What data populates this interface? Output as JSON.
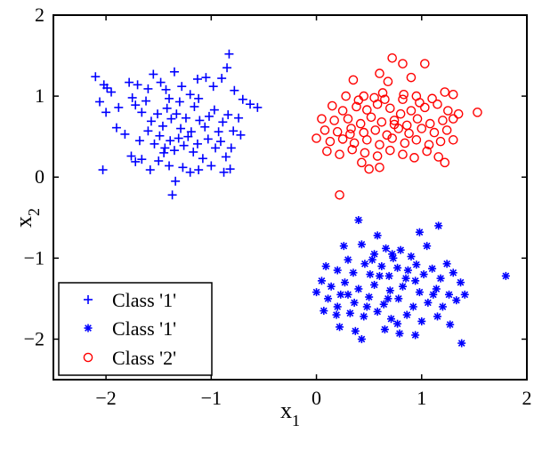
{
  "chart_data": {
    "type": "scatter",
    "xlabel": "x",
    "xlabel_sub": "1",
    "ylabel": "x",
    "ylabel_sub": "2",
    "xlim": [
      -2.5,
      2
    ],
    "ylim": [
      -2.5,
      2
    ],
    "xticks": [
      -2,
      -1,
      0,
      1,
      2
    ],
    "yticks": [
      -2,
      -1,
      0,
      1,
      2
    ],
    "xtick_labels": [
      "−2",
      "−1",
      "0",
      "1",
      "2"
    ],
    "ytick_labels": [
      "−2",
      "−1",
      "0",
      "1",
      "2"
    ],
    "grid": false,
    "legend_position": "bottom-left",
    "series": [
      {
        "name": "Class '1'",
        "marker": "plus",
        "color": "#0000ff",
        "points": [
          [
            -2.1,
            1.24
          ],
          [
            -2.02,
            1.14
          ],
          [
            -1.95,
            1.05
          ],
          [
            -2.06,
            0.93
          ],
          [
            -2.0,
            0.8
          ],
          [
            -1.78,
            1.17
          ],
          [
            -1.75,
            0.98
          ],
          [
            -1.6,
            1.09
          ],
          [
            -1.55,
            1.27
          ],
          [
            -1.48,
            1.17
          ],
          [
            -1.43,
            1.08
          ],
          [
            -1.4,
            0.97
          ],
          [
            -1.35,
            1.3
          ],
          [
            -1.28,
            1.12
          ],
          [
            -1.2,
            1.02
          ],
          [
            -1.13,
            1.21
          ],
          [
            -1.05,
            1.23
          ],
          [
            -0.98,
            1.12
          ],
          [
            -0.9,
            1.22
          ],
          [
            -0.85,
            1.35
          ],
          [
            -0.83,
            1.52
          ],
          [
            -0.78,
            1.07
          ],
          [
            -0.7,
            0.96
          ],
          [
            -0.63,
            0.9
          ],
          [
            -0.56,
            0.86
          ],
          [
            -1.88,
            0.86
          ],
          [
            -1.72,
            0.89
          ],
          [
            -1.66,
            0.8
          ],
          [
            -1.62,
            0.94
          ],
          [
            -1.57,
            0.69
          ],
          [
            -1.51,
            0.78
          ],
          [
            -1.46,
            0.63
          ],
          [
            -1.42,
            0.85
          ],
          [
            -1.38,
            0.72
          ],
          [
            -1.33,
            0.78
          ],
          [
            -1.29,
            0.6
          ],
          [
            -1.24,
            0.73
          ],
          [
            -1.19,
            0.56
          ],
          [
            -1.16,
            0.87
          ],
          [
            -1.11,
            0.7
          ],
          [
            -1.06,
            0.62
          ],
          [
            -1.02,
            0.75
          ],
          [
            -0.97,
            0.83
          ],
          [
            -0.93,
            0.56
          ],
          [
            -0.89,
            0.68
          ],
          [
            -0.84,
            0.77
          ],
          [
            -0.79,
            0.57
          ],
          [
            -0.72,
            0.52
          ],
          [
            -1.9,
            0.61
          ],
          [
            -1.82,
            0.53
          ],
          [
            -1.68,
            0.45
          ],
          [
            -1.6,
            0.57
          ],
          [
            -1.54,
            0.41
          ],
          [
            -1.49,
            0.51
          ],
          [
            -1.44,
            0.36
          ],
          [
            -1.39,
            0.45
          ],
          [
            -1.35,
            0.33
          ],
          [
            -1.31,
            0.48
          ],
          [
            -1.26,
            0.39
          ],
          [
            -1.22,
            0.5
          ],
          [
            -1.17,
            0.31
          ],
          [
            -1.13,
            0.41
          ],
          [
            -1.08,
            0.23
          ],
          [
            -1.03,
            0.47
          ],
          [
            -0.96,
            0.36
          ],
          [
            -0.91,
            0.44
          ],
          [
            -0.86,
            0.25
          ],
          [
            -0.81,
            0.36
          ],
          [
            -1.76,
            0.26
          ],
          [
            -1.72,
            0.19
          ],
          [
            -1.66,
            0.22
          ],
          [
            -1.58,
            0.09
          ],
          [
            -1.5,
            0.2
          ],
          [
            -1.45,
            0.3
          ],
          [
            -1.4,
            0.14
          ],
          [
            -1.34,
            -0.05
          ],
          [
            -1.37,
            -0.22
          ],
          [
            -1.27,
            0.12
          ],
          [
            -1.2,
            0.06
          ],
          [
            -1.12,
            0.09
          ],
          [
            -1.0,
            0.14
          ],
          [
            -0.88,
            0.06
          ],
          [
            -0.82,
            0.1
          ],
          [
            -2.03,
            0.09
          ],
          [
            -1.99,
            1.1
          ],
          [
            -1.7,
            1.14
          ],
          [
            -1.3,
            0.93
          ],
          [
            -1.12,
            0.97
          ],
          [
            -0.74,
            0.73
          ]
        ]
      },
      {
        "name": "Class '1'",
        "marker": "asterisk",
        "color": "#0000ff",
        "points": [
          [
            0.4,
            -0.53
          ],
          [
            0.98,
            -0.68
          ],
          [
            1.16,
            -0.6
          ],
          [
            0.58,
            -0.72
          ],
          [
            0.43,
            -0.83
          ],
          [
            0.66,
            -0.88
          ],
          [
            0.8,
            -0.9
          ],
          [
            0.55,
            -0.95
          ],
          [
            0.73,
            -1.0
          ],
          [
            0.9,
            -0.98
          ],
          [
            0.3,
            -1.02
          ],
          [
            0.46,
            -1.07
          ],
          [
            0.62,
            -1.1
          ],
          [
            0.77,
            -1.12
          ],
          [
            0.95,
            -1.08
          ],
          [
            1.1,
            -1.13
          ],
          [
            1.24,
            -1.07
          ],
          [
            0.2,
            -1.15
          ],
          [
            0.35,
            -1.18
          ],
          [
            0.51,
            -1.2
          ],
          [
            0.69,
            -1.22
          ],
          [
            0.85,
            -1.25
          ],
          [
            1.02,
            -1.2
          ],
          [
            1.18,
            -1.25
          ],
          [
            1.3,
            -1.18
          ],
          [
            1.37,
            -1.3
          ],
          [
            0.05,
            -1.28
          ],
          [
            0.14,
            -1.35
          ],
          [
            0.27,
            -1.3
          ],
          [
            0.4,
            -1.38
          ],
          [
            0.55,
            -1.33
          ],
          [
            0.7,
            -1.4
          ],
          [
            0.82,
            -1.35
          ],
          [
            0.98,
            -1.42
          ],
          [
            1.14,
            -1.38
          ],
          [
            1.26,
            -1.45
          ],
          [
            0.0,
            -1.42
          ],
          [
            0.11,
            -1.5
          ],
          [
            0.23,
            -1.45
          ],
          [
            0.36,
            -1.55
          ],
          [
            0.5,
            -1.48
          ],
          [
            0.64,
            -1.57
          ],
          [
            0.78,
            -1.5
          ],
          [
            0.92,
            -1.6
          ],
          [
            1.06,
            -1.55
          ],
          [
            1.2,
            -1.6
          ],
          [
            1.33,
            -1.52
          ],
          [
            0.07,
            -1.65
          ],
          [
            0.19,
            -1.7
          ],
          [
            0.32,
            -1.68
          ],
          [
            0.45,
            -1.72
          ],
          [
            0.58,
            -1.66
          ],
          [
            0.71,
            -1.75
          ],
          [
            0.86,
            -1.7
          ],
          [
            1.0,
            -1.78
          ],
          [
            1.15,
            -1.72
          ],
          [
            1.27,
            -1.82
          ],
          [
            0.22,
            -1.85
          ],
          [
            0.37,
            -1.9
          ],
          [
            0.65,
            -1.88
          ],
          [
            0.79,
            -1.93
          ],
          [
            0.94,
            -1.95
          ],
          [
            0.6,
            -1.22
          ],
          [
            0.48,
            -1.6
          ],
          [
            0.72,
            -0.95
          ],
          [
            1.41,
            -1.45
          ],
          [
            1.38,
            -2.05
          ],
          [
            0.43,
            -2.0
          ],
          [
            1.8,
            -1.22
          ],
          [
            0.26,
            -0.85
          ],
          [
            0.09,
            -1.1
          ],
          [
            0.2,
            -1.6
          ],
          [
            0.87,
            -1.15
          ],
          [
            0.53,
            -1.02
          ],
          [
            1.05,
            -0.85
          ],
          [
            0.3,
            -1.45
          ],
          [
            0.68,
            -1.5
          ],
          [
            0.94,
            -1.28
          ],
          [
            1.11,
            -1.45
          ],
          [
            0.77,
            -1.81
          ]
        ]
      },
      {
        "name": "Class '2'",
        "marker": "circle",
        "color": "#ff0000",
        "points": [
          [
            0.72,
            1.47
          ],
          [
            0.82,
            1.4
          ],
          [
            1.03,
            1.4
          ],
          [
            0.6,
            1.28
          ],
          [
            0.35,
            1.2
          ],
          [
            0.68,
            1.18
          ],
          [
            0.9,
            1.23
          ],
          [
            0.28,
            1.0
          ],
          [
            0.45,
            1.0
          ],
          [
            0.55,
            0.98
          ],
          [
            0.63,
            1.04
          ],
          [
            0.83,
            1.02
          ],
          [
            0.95,
            1.0
          ],
          [
            1.1,
            0.97
          ],
          [
            1.22,
            1.05
          ],
          [
            1.3,
            1.02
          ],
          [
            0.15,
            0.88
          ],
          [
            0.25,
            0.82
          ],
          [
            0.38,
            0.87
          ],
          [
            0.48,
            0.83
          ],
          [
            0.58,
            0.9
          ],
          [
            0.7,
            0.85
          ],
          [
            0.8,
            0.78
          ],
          [
            0.9,
            0.82
          ],
          [
            1.03,
            0.86
          ],
          [
            1.15,
            0.9
          ],
          [
            1.25,
            0.82
          ],
          [
            1.35,
            0.78
          ],
          [
            1.53,
            0.8
          ],
          [
            0.05,
            0.72
          ],
          [
            0.17,
            0.7
          ],
          [
            0.3,
            0.72
          ],
          [
            0.42,
            0.66
          ],
          [
            0.52,
            0.74
          ],
          [
            0.62,
            0.68
          ],
          [
            0.74,
            0.7
          ],
          [
            0.86,
            0.64
          ],
          [
            0.96,
            0.72
          ],
          [
            1.08,
            0.66
          ],
          [
            1.2,
            0.7
          ],
          [
            1.3,
            0.72
          ],
          [
            0.08,
            0.58
          ],
          [
            0.2,
            0.56
          ],
          [
            0.33,
            0.6
          ],
          [
            0.45,
            0.55
          ],
          [
            0.56,
            0.58
          ],
          [
            0.67,
            0.52
          ],
          [
            0.78,
            0.6
          ],
          [
            0.88,
            0.54
          ],
          [
            1.0,
            0.6
          ],
          [
            1.12,
            0.55
          ],
          [
            1.24,
            0.58
          ],
          [
            0.0,
            0.48
          ],
          [
            0.13,
            0.44
          ],
          [
            0.25,
            0.47
          ],
          [
            0.36,
            0.42
          ],
          [
            0.48,
            0.46
          ],
          [
            0.6,
            0.4
          ],
          [
            0.72,
            0.48
          ],
          [
            0.84,
            0.42
          ],
          [
            0.95,
            0.46
          ],
          [
            1.07,
            0.4
          ],
          [
            1.18,
            0.44
          ],
          [
            1.3,
            0.46
          ],
          [
            0.1,
            0.32
          ],
          [
            0.22,
            0.28
          ],
          [
            0.34,
            0.34
          ],
          [
            0.46,
            0.3
          ],
          [
            0.58,
            0.26
          ],
          [
            0.7,
            0.33
          ],
          [
            0.82,
            0.28
          ],
          [
            0.93,
            0.24
          ],
          [
            1.05,
            0.32
          ],
          [
            1.16,
            0.25
          ],
          [
            0.5,
            0.1
          ],
          [
            0.43,
            0.18
          ],
          [
            0.6,
            0.12
          ],
          [
            0.22,
            -0.22
          ],
          [
            0.74,
            0.65
          ],
          [
            0.98,
            0.92
          ],
          [
            0.4,
            0.95
          ],
          [
            0.65,
            0.96
          ],
          [
            0.82,
            0.96
          ],
          [
            1.22,
            0.18
          ],
          [
            0.32,
            0.53
          ]
        ]
      }
    ]
  }
}
